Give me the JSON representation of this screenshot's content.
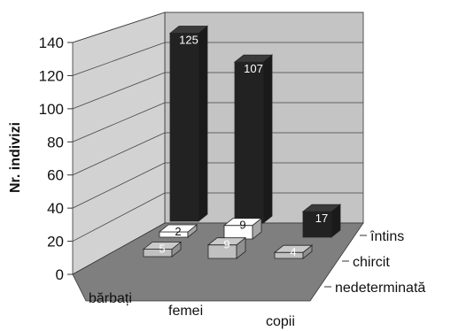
{
  "chart_data": {
    "type": "bar",
    "ylabel": "Nr. indivizi",
    "ylim": [
      0,
      140
    ],
    "yticks": [
      0,
      20,
      40,
      60,
      80,
      100,
      120,
      140
    ],
    "categories": [
      "bărbați",
      "femei",
      "copii"
    ],
    "series": [
      {
        "name": "întins",
        "values": [
          125,
          107,
          17
        ],
        "color": "#222222"
      },
      {
        "name": "chircit",
        "values": [
          2,
          9,
          null
        ],
        "color": "#ffffff"
      },
      {
        "name": "nedeterminată",
        "values": [
          5,
          9,
          4
        ],
        "color": "#c0c0c0"
      }
    ],
    "grid": true,
    "style": "3d"
  }
}
